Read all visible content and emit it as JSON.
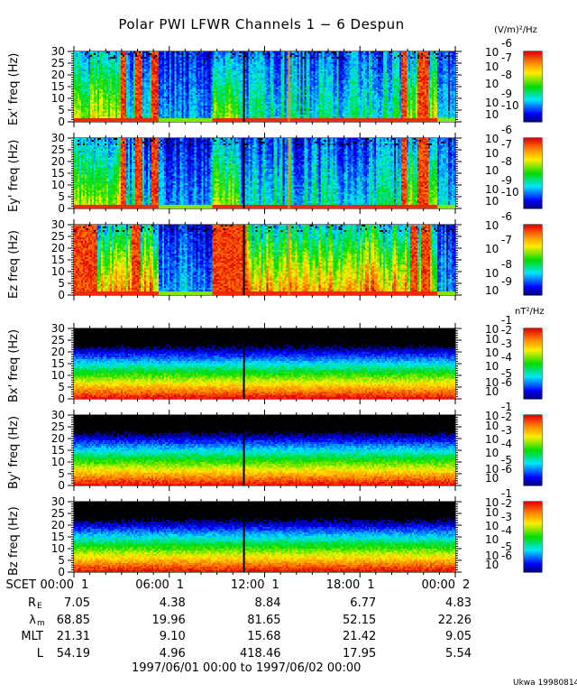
{
  "chart_data": {
    "type": "heatmap",
    "title": "Polar PWI LFWR Channels 1 − 6 Despun",
    "electric_unit": "(V/m)²/Hz",
    "magnetic_unit": "nT²/Hz",
    "panels": [
      {
        "ylabel": "Ex' freq (Hz)",
        "kind": "electric",
        "ylim": [
          0,
          30
        ],
        "yticks": [
          "30",
          "25",
          "20",
          "15",
          "10",
          "5",
          "0"
        ],
        "colorbar_exponents": [
          "-6",
          "-7",
          "-8",
          "-9",
          "-10"
        ]
      },
      {
        "ylabel": "Ey' freq (Hz)",
        "kind": "electric",
        "ylim": [
          0,
          30
        ],
        "yticks": [
          "30",
          "25",
          "20",
          "15",
          "10",
          "5",
          "0"
        ],
        "colorbar_exponents": [
          "-6",
          "-7",
          "-8",
          "-9",
          "-10"
        ]
      },
      {
        "ylabel": "Ez freq (Hz)",
        "kind": "electric",
        "ylim": [
          0,
          30
        ],
        "yticks": [
          "30",
          "25",
          "20",
          "15",
          "10",
          "5",
          "0"
        ],
        "colorbar_exponents": [
          "-6",
          "-7",
          "-8",
          "-9"
        ]
      },
      {
        "ylabel": "Bx' freq (Hz)",
        "kind": "magnetic",
        "ylim": [
          0,
          30
        ],
        "yticks": [
          "30",
          "25",
          "20",
          "15",
          "10",
          "5",
          "0"
        ],
        "colorbar_exponents": [
          "-1",
          "-2",
          "-3",
          "-4",
          "-5",
          "-6"
        ]
      },
      {
        "ylabel": "By' freq (Hz)",
        "kind": "magnetic",
        "ylim": [
          0,
          30
        ],
        "yticks": [
          "30",
          "25",
          "20",
          "15",
          "10",
          "5",
          "0"
        ],
        "colorbar_exponents": [
          "-1",
          "-2",
          "-3",
          "-4",
          "-5",
          "-6"
        ]
      },
      {
        "ylabel": "Bz freq (Hz)",
        "kind": "magnetic",
        "ylim": [
          0,
          30
        ],
        "yticks": [
          "30",
          "25",
          "20",
          "15",
          "10",
          "5",
          "0"
        ],
        "colorbar_exponents": [
          "-1",
          "-2",
          "-3",
          "-4",
          "-5",
          "-6"
        ]
      }
    ],
    "colorbar_base": "10",
    "x_axis": {
      "row_label": "SCET",
      "ticks": [
        {
          "time": "00:00",
          "day": "1"
        },
        {
          "time": "06:00",
          "day": "1"
        },
        {
          "time": "12:00",
          "day": "1"
        },
        {
          "time": "18:00",
          "day": "1"
        },
        {
          "time": "00:00",
          "day": "2"
        }
      ]
    },
    "ephemeris": [
      {
        "label": "R",
        "sub": "E",
        "values": [
          "7.05",
          "4.38",
          "8.84",
          "6.77",
          "4.83"
        ]
      },
      {
        "label": "λ",
        "sub": "m",
        "values": [
          "68.85",
          "19.96",
          "81.65",
          "52.15",
          "22.26"
        ]
      },
      {
        "label": "MLT",
        "sub": "",
        "values": [
          "21.31",
          "9.10",
          "15.68",
          "21.42",
          "9.05"
        ]
      },
      {
        "label": "L",
        "sub": "",
        "values": [
          "54.19",
          "4.96",
          "418.46",
          "17.95",
          "5.54"
        ]
      }
    ],
    "time_range": "1997/06/01 00:00 to 1997/06/02 00:00",
    "credit": "Ukwa 19980814"
  }
}
